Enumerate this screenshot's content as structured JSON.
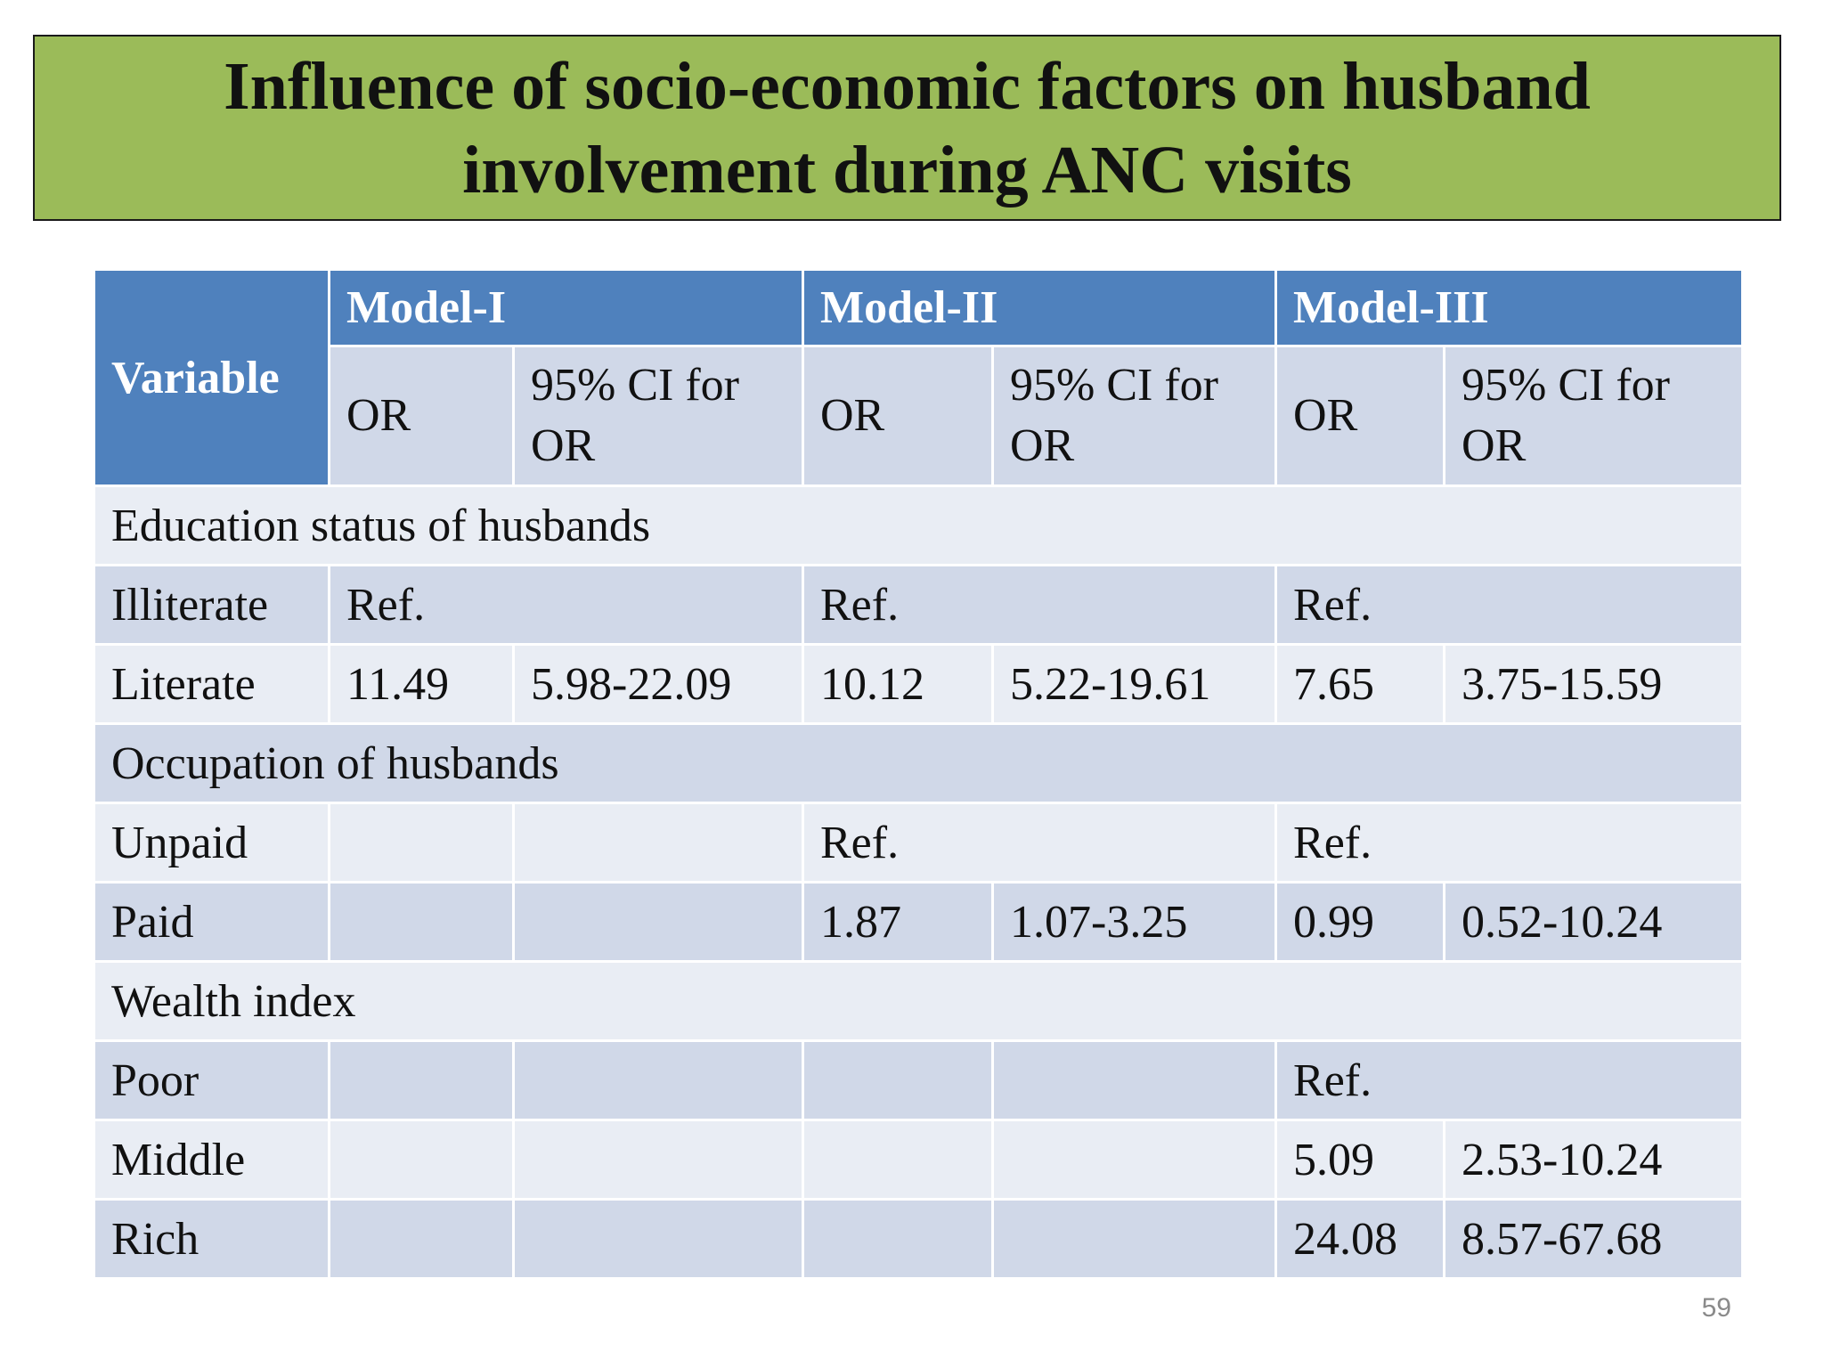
{
  "slide": {
    "title": "Influence of socio-economic factors on husband\ninvolvement during ANC visits",
    "page_number": "59"
  },
  "table": {
    "variable_header": "Variable",
    "models": [
      "Model-I",
      "Model-II",
      "Model-III"
    ],
    "or_label": "OR",
    "ci_label": "95% CI for OR",
    "sections": [
      {
        "heading": "Education status of husbands",
        "rows": [
          {
            "label": "Illiterate",
            "m1_or": "Ref.",
            "m1_ci": "",
            "m2_or": "Ref.",
            "m2_ci": "",
            "m3_or": "Ref.",
            "m3_ci": ""
          },
          {
            "label": "Literate",
            "m1_or": "11.49",
            "m1_ci": "5.98-22.09",
            "m2_or": "10.12",
            "m2_ci": "5.22-19.61",
            "m3_or": "7.65",
            "m3_ci": "3.75-15.59"
          }
        ]
      },
      {
        "heading": "Occupation of husbands",
        "rows": [
          {
            "label": "Unpaid",
            "m1_or": "",
            "m1_ci": "",
            "m2_or": "Ref.",
            "m2_ci": "",
            "m3_or": "Ref.",
            "m3_ci": ""
          },
          {
            "label": "Paid",
            "m1_or": "",
            "m1_ci": "",
            "m2_or": "1.87",
            "m2_ci": "1.07-3.25",
            "m3_or": "0.99",
            "m3_ci": "0.52-10.24"
          }
        ]
      },
      {
        "heading": "Wealth index",
        "rows": [
          {
            "label": "Poor",
            "m1_or": "",
            "m1_ci": "",
            "m2_or": "",
            "m2_ci": "",
            "m3_or": "Ref.",
            "m3_ci": ""
          },
          {
            "label": "Middle",
            "m1_or": "",
            "m1_ci": "",
            "m2_or": "",
            "m2_ci": "",
            "m3_or": "5.09",
            "m3_ci": "2.53-10.24"
          },
          {
            "label": "Rich",
            "m1_or": "",
            "m1_ci": "",
            "m2_or": "",
            "m2_ci": "",
            "m3_or": "24.08",
            "m3_ci": "8.57-67.68"
          }
        ]
      }
    ]
  },
  "colors": {
    "title_fill": "#9bbb59",
    "header_fill": "#4f81bd",
    "row_dark": "#d0d8e8",
    "row_light": "#e9edf4"
  }
}
